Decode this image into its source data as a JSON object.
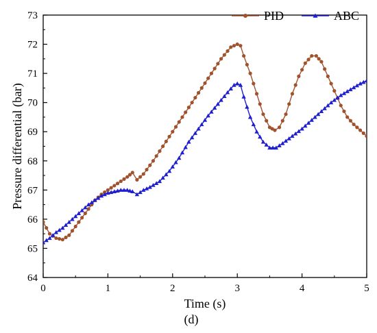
{
  "chart_data": {
    "type": "line",
    "xlabel": "Time (s)",
    "ylabel": "Pressure differential (bar)",
    "caption": "(d)",
    "xlim": [
      0,
      5
    ],
    "ylim": [
      64,
      73
    ],
    "xticks": [
      "0",
      "1",
      "2",
      "3",
      "4",
      "5"
    ],
    "yticks": [
      "64",
      "65",
      "66",
      "67",
      "68",
      "69",
      "70",
      "71",
      "72",
      "73"
    ],
    "legend_position": "top-right",
    "grid": false,
    "colors": {
      "PID": "#a0522d",
      "ABC": "#1f1fd0"
    },
    "series": [
      {
        "name": "PID",
        "marker": "circle",
        "points": [
          [
            0,
            65.9
          ],
          [
            0.1,
            65.5
          ],
          [
            0.2,
            65.35
          ],
          [
            0.3,
            65.3
          ],
          [
            0.4,
            65.45
          ],
          [
            0.5,
            65.75
          ],
          [
            0.6,
            66.05
          ],
          [
            0.7,
            66.35
          ],
          [
            0.8,
            66.65
          ],
          [
            0.9,
            66.85
          ],
          [
            1.0,
            67.0
          ],
          [
            1.1,
            67.15
          ],
          [
            1.2,
            67.3
          ],
          [
            1.3,
            67.45
          ],
          [
            1.38,
            67.6
          ],
          [
            1.45,
            67.35
          ],
          [
            1.55,
            67.55
          ],
          [
            1.7,
            68.0
          ],
          [
            1.85,
            68.5
          ],
          [
            2.0,
            69.0
          ],
          [
            2.15,
            69.5
          ],
          [
            2.3,
            70.0
          ],
          [
            2.45,
            70.5
          ],
          [
            2.6,
            71.0
          ],
          [
            2.75,
            71.5
          ],
          [
            2.9,
            71.9
          ],
          [
            3.0,
            72.0
          ],
          [
            3.05,
            71.95
          ],
          [
            3.1,
            71.6
          ],
          [
            3.2,
            71.0
          ],
          [
            3.3,
            70.3
          ],
          [
            3.4,
            69.6
          ],
          [
            3.5,
            69.15
          ],
          [
            3.58,
            69.05
          ],
          [
            3.65,
            69.15
          ],
          [
            3.75,
            69.6
          ],
          [
            3.85,
            70.3
          ],
          [
            3.95,
            70.9
          ],
          [
            4.05,
            71.35
          ],
          [
            4.15,
            71.6
          ],
          [
            4.22,
            71.6
          ],
          [
            4.3,
            71.4
          ],
          [
            4.4,
            70.9
          ],
          [
            4.5,
            70.4
          ],
          [
            4.6,
            69.9
          ],
          [
            4.7,
            69.5
          ],
          [
            4.8,
            69.25
          ],
          [
            4.9,
            69.05
          ],
          [
            5.0,
            68.85
          ]
        ]
      },
      {
        "name": "ABC",
        "marker": "triangle",
        "points": [
          [
            0,
            65.2
          ],
          [
            0.1,
            65.35
          ],
          [
            0.2,
            65.55
          ],
          [
            0.3,
            65.7
          ],
          [
            0.4,
            65.9
          ],
          [
            0.5,
            66.1
          ],
          [
            0.6,
            66.3
          ],
          [
            0.7,
            66.5
          ],
          [
            0.8,
            66.65
          ],
          [
            0.9,
            66.8
          ],
          [
            1.0,
            66.9
          ],
          [
            1.1,
            66.95
          ],
          [
            1.2,
            67.0
          ],
          [
            1.3,
            67.0
          ],
          [
            1.38,
            66.95
          ],
          [
            1.45,
            66.85
          ],
          [
            1.55,
            67.0
          ],
          [
            1.65,
            67.1
          ],
          [
            1.8,
            67.3
          ],
          [
            1.95,
            67.65
          ],
          [
            2.1,
            68.1
          ],
          [
            2.25,
            68.65
          ],
          [
            2.4,
            69.1
          ],
          [
            2.55,
            69.55
          ],
          [
            2.7,
            69.95
          ],
          [
            2.85,
            70.35
          ],
          [
            2.95,
            70.6
          ],
          [
            3.0,
            70.65
          ],
          [
            3.05,
            70.6
          ],
          [
            3.1,
            70.2
          ],
          [
            3.2,
            69.5
          ],
          [
            3.3,
            69.0
          ],
          [
            3.4,
            68.65
          ],
          [
            3.5,
            68.45
          ],
          [
            3.6,
            68.45
          ],
          [
            3.7,
            68.6
          ],
          [
            3.85,
            68.85
          ],
          [
            4.0,
            69.1
          ],
          [
            4.15,
            69.4
          ],
          [
            4.3,
            69.7
          ],
          [
            4.45,
            70.0
          ],
          [
            4.6,
            70.25
          ],
          [
            4.75,
            70.45
          ],
          [
            4.9,
            70.65
          ],
          [
            5.0,
            70.75
          ]
        ]
      }
    ]
  }
}
